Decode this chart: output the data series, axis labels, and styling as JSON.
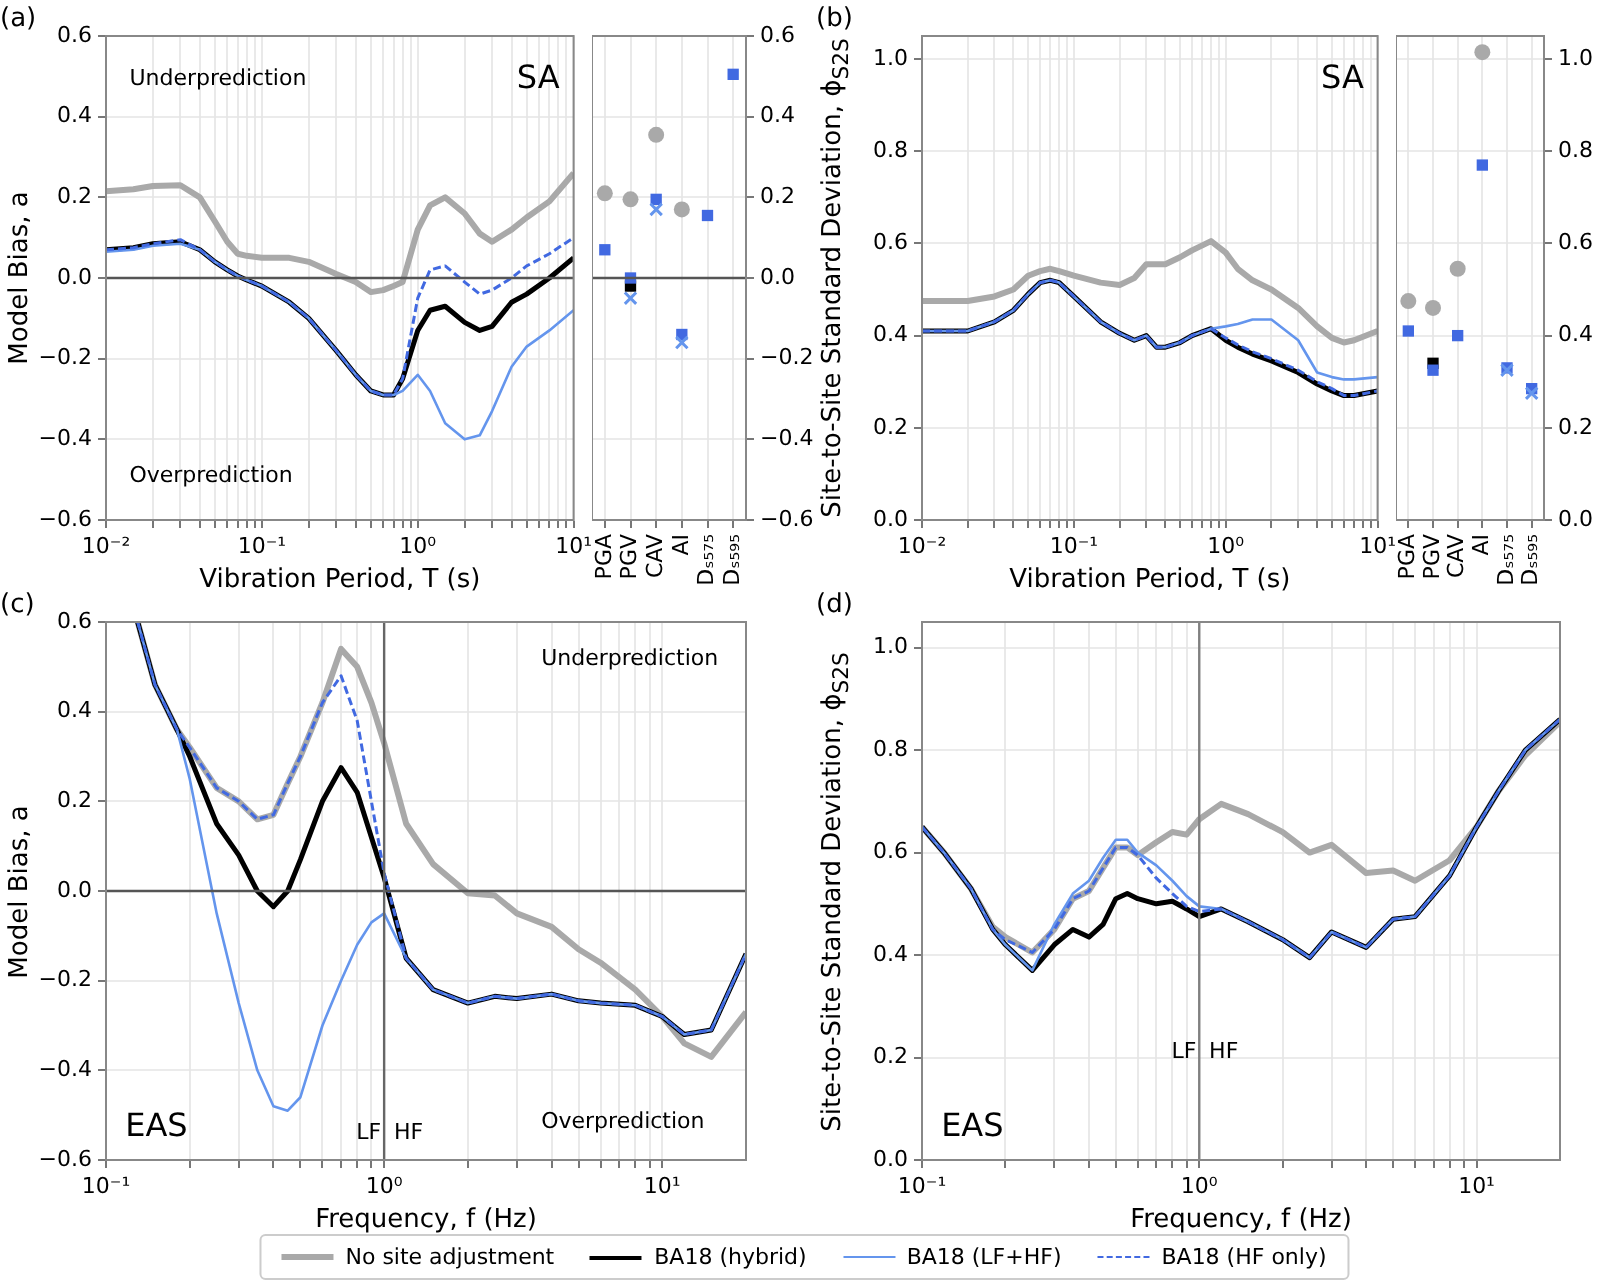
{
  "chart_data": [
    {
      "type": "line",
      "title": "(a)",
      "xlabel": "Vibration Period, T (s)",
      "ylabel": "Model Bias, a",
      "log": "x",
      "grid": true,
      "legend": "bottom",
      "annotations": [
        "Underprediction",
        "SA",
        "Overprediction"
      ],
      "xlim": [
        0.01,
        10
      ],
      "xticks": [
        {
          "value": 0.01,
          "label": "10⁻²"
        },
        {
          "value": 0.02,
          "label": null
        },
        {
          "value": 0.03,
          "label": null
        },
        {
          "value": 0.04,
          "label": null
        },
        {
          "value": 0.05,
          "label": null
        },
        {
          "value": 0.06,
          "label": null
        },
        {
          "value": 0.07,
          "label": null
        },
        {
          "value": 0.08,
          "label": null
        },
        {
          "value": 0.09,
          "label": null
        },
        {
          "value": 0.1,
          "label": "10⁻¹"
        },
        {
          "value": 0.2,
          "label": null
        },
        {
          "value": 0.3,
          "label": null
        },
        {
          "value": 0.4,
          "label": null
        },
        {
          "value": 0.5,
          "label": null
        },
        {
          "value": 0.6,
          "label": null
        },
        {
          "value": 0.7,
          "label": null
        },
        {
          "value": 0.8,
          "label": null
        },
        {
          "value": 0.9,
          "label": null
        },
        {
          "value": 1,
          "label": "10⁰"
        },
        {
          "value": 2,
          "label": null
        },
        {
          "value": 3,
          "label": null
        },
        {
          "value": 4,
          "label": null
        },
        {
          "value": 5,
          "label": null
        },
        {
          "value": 6,
          "label": null
        },
        {
          "value": 7,
          "label": null
        },
        {
          "value": 8,
          "label": null
        },
        {
          "value": 9,
          "label": null
        },
        {
          "value": 10,
          "label": "10¹"
        }
      ],
      "ylim": [
        -0.6,
        0.6
      ],
      "yticks": [
        {
          "value": -0.6,
          "label": "−0.6"
        },
        {
          "value": -0.4,
          "label": "−0.4"
        },
        {
          "value": -0.2,
          "label": "−0.2"
        },
        {
          "value": 0,
          "label": "0.0"
        },
        0.2,
        0.4,
        0.6
      ],
      "ref_lines": [
        {
          "axis": "y",
          "value": 0,
          "color": "#555555"
        }
      ],
      "x": [
        0.01,
        0.015,
        0.02,
        0.03,
        0.04,
        0.05,
        0.06,
        0.07,
        0.08,
        0.1,
        0.15,
        0.2,
        0.3,
        0.4,
        0.5,
        0.6,
        0.7,
        0.8,
        1.0,
        1.2,
        1.5,
        2,
        2.5,
        3,
        4,
        5,
        7,
        10
      ],
      "series": [
        {
          "name": "No site adjustment",
          "color": "#a9a9a9",
          "values": [
            0.215,
            0.22,
            0.228,
            0.23,
            0.2,
            0.14,
            0.09,
            0.06,
            0.055,
            0.05,
            0.05,
            0.04,
            0.01,
            -0.01,
            -0.035,
            -0.03,
            -0.02,
            -0.01,
            0.12,
            0.18,
            0.2,
            0.16,
            0.11,
            0.09,
            0.12,
            0.15,
            0.19,
            0.26
          ]
        },
        {
          "name": "BA18 (hybrid)",
          "color": "#000000",
          "values": [
            0.07,
            0.075,
            0.085,
            0.09,
            0.07,
            0.04,
            0.02,
            0.005,
            -0.005,
            -0.02,
            -0.06,
            -0.1,
            -0.18,
            -0.24,
            -0.28,
            -0.29,
            -0.29,
            -0.25,
            -0.13,
            -0.08,
            -0.07,
            -0.11,
            -0.13,
            -0.12,
            -0.06,
            -0.04,
            0.0,
            0.05
          ]
        },
        {
          "name": "BA18 (LF+HF)",
          "color": "#6495ed",
          "values": [
            0.065,
            0.07,
            0.08,
            0.085,
            0.07,
            0.04,
            0.02,
            0.005,
            -0.005,
            -0.02,
            -0.06,
            -0.1,
            -0.18,
            -0.24,
            -0.28,
            -0.29,
            -0.29,
            -0.28,
            -0.24,
            -0.28,
            -0.36,
            -0.4,
            -0.39,
            -0.33,
            -0.22,
            -0.17,
            -0.13,
            -0.08
          ]
        },
        {
          "name": "BA18 (HF only)",
          "color": "#4169e1",
          "line_style": "dashed",
          "values": [
            0.07,
            0.075,
            0.085,
            0.095,
            0.07,
            0.04,
            0.02,
            0.005,
            -0.005,
            -0.02,
            -0.06,
            -0.1,
            -0.18,
            -0.24,
            -0.28,
            -0.29,
            -0.29,
            -0.25,
            -0.05,
            0.02,
            0.03,
            -0.01,
            -0.04,
            -0.03,
            0.0,
            0.03,
            0.06,
            0.1
          ]
        }
      ]
    },
    {
      "type": "scatter",
      "categories": [
        "PGA",
        "PGV",
        "CAV",
        "AI",
        "Dₛ₅₇₅",
        "Dₛ₅₉₅"
      ],
      "grid": true,
      "y2lim": [
        -0.6,
        0.6
      ],
      "y2ticks": [
        {
          "value": -0.6,
          "label": "−0.6"
        },
        {
          "value": -0.4,
          "label": "−0.4"
        },
        {
          "value": -0.2,
          "label": "−0.2"
        },
        {
          "value": 0,
          "label": "0.0"
        },
        0.2,
        0.4,
        0.6
      ],
      "ref_lines": [
        {
          "axis": "y2",
          "value": 0,
          "color": "#555555"
        }
      ],
      "series": [
        {
          "color": "#a9a9a9",
          "marker": "circle",
          "axis": "y2",
          "values": [
            0.21,
            0.195,
            0.355,
            0.17,
            null,
            null
          ]
        },
        {
          "color": "#000000",
          "marker": "square",
          "axis": "y2",
          "values": [
            null,
            -0.02,
            null,
            null,
            null,
            null
          ]
        },
        {
          "color": "#4169e1",
          "marker": "square",
          "axis": "y2",
          "values": [
            0.07,
            0.0,
            0.195,
            -0.14,
            0.155,
            0.505
          ]
        },
        {
          "color": "#6495ed",
          "marker": "cross",
          "axis": "y2",
          "values": [
            null,
            -0.05,
            0.17,
            -0.16,
            null,
            null
          ]
        }
      ]
    },
    {
      "type": "line",
      "title": "(b)",
      "xlabel": "Vibration Period, T (s)",
      "ylabel": "Site-to-Site Standard Deviation, ϕ$_{S2S}$",
      "log": "x",
      "grid": true,
      "annotations": [
        "SA"
      ],
      "xlim": [
        0.01,
        10
      ],
      "xticks": [
        {
          "value": 0.01,
          "label": "10⁻²"
        },
        {
          "value": 0.02,
          "label": null
        },
        {
          "value": 0.03,
          "label": null
        },
        {
          "value": 0.04,
          "label": null
        },
        {
          "value": 0.05,
          "label": null
        },
        {
          "value": 0.06,
          "label": null
        },
        {
          "value": 0.07,
          "label": null
        },
        {
          "value": 0.08,
          "label": null
        },
        {
          "value": 0.09,
          "label": null
        },
        {
          "value": 0.1,
          "label": "10⁻¹"
        },
        {
          "value": 0.2,
          "label": null
        },
        {
          "value": 0.3,
          "label": null
        },
        {
          "value": 0.4,
          "label": null
        },
        {
          "value": 0.5,
          "label": null
        },
        {
          "value": 0.6,
          "label": null
        },
        {
          "value": 0.7,
          "label": null
        },
        {
          "value": 0.8,
          "label": null
        },
        {
          "value": 0.9,
          "label": null
        },
        {
          "value": 1,
          "label": "10⁰"
        },
        {
          "value": 2,
          "label": null
        },
        {
          "value": 3,
          "label": null
        },
        {
          "value": 4,
          "label": null
        },
        {
          "value": 5,
          "label": null
        },
        {
          "value": 6,
          "label": null
        },
        {
          "value": 7,
          "label": null
        },
        {
          "value": 8,
          "label": null
        },
        {
          "value": 9,
          "label": null
        },
        {
          "value": 10,
          "label": "10¹"
        }
      ],
      "ylim": [
        0,
        1.05
      ],
      "yticks": [
        {
          "value": 0,
          "label": "0.0"
        },
        0.2,
        0.4,
        0.6,
        0.8,
        {
          "value": 1,
          "label": "1.0"
        }
      ],
      "x": [
        0.01,
        0.015,
        0.02,
        0.03,
        0.04,
        0.05,
        0.06,
        0.07,
        0.08,
        0.1,
        0.15,
        0.2,
        0.25,
        0.3,
        0.35,
        0.4,
        0.5,
        0.6,
        0.8,
        1.0,
        1.2,
        1.5,
        2,
        3,
        4,
        5,
        6,
        7,
        10
      ],
      "series": [
        {
          "color": "#a9a9a9",
          "values": [
            0.475,
            0.475,
            0.475,
            0.485,
            0.5,
            0.53,
            0.54,
            0.545,
            0.54,
            0.53,
            0.515,
            0.51,
            0.525,
            0.555,
            0.555,
            0.555,
            0.57,
            0.585,
            0.605,
            0.58,
            0.545,
            0.52,
            0.5,
            0.46,
            0.42,
            0.395,
            0.385,
            0.39,
            0.41
          ]
        },
        {
          "color": "#000000",
          "values": [
            0.41,
            0.41,
            0.41,
            0.43,
            0.455,
            0.49,
            0.515,
            0.52,
            0.515,
            0.485,
            0.43,
            0.405,
            0.39,
            0.4,
            0.375,
            0.375,
            0.385,
            0.4,
            0.415,
            0.39,
            0.375,
            0.36,
            0.345,
            0.32,
            0.295,
            0.28,
            0.27,
            0.27,
            0.28
          ]
        },
        {
          "color": "#6495ed",
          "values": [
            0.41,
            0.41,
            0.41,
            0.43,
            0.455,
            0.49,
            0.515,
            0.52,
            0.515,
            0.485,
            0.43,
            0.405,
            0.39,
            0.4,
            0.375,
            0.375,
            0.385,
            0.4,
            0.415,
            0.42,
            0.425,
            0.435,
            0.435,
            0.39,
            0.32,
            0.31,
            0.305,
            0.305,
            0.31
          ]
        },
        {
          "color": "#4169e1",
          "line_style": "dashed",
          "values": [
            0.41,
            0.41,
            0.41,
            0.43,
            0.455,
            0.49,
            0.515,
            0.52,
            0.515,
            0.485,
            0.43,
            0.405,
            0.39,
            0.4,
            0.375,
            0.375,
            0.385,
            0.4,
            0.415,
            0.395,
            0.38,
            0.365,
            0.35,
            0.325,
            0.3,
            0.285,
            0.27,
            0.27,
            0.28
          ]
        }
      ]
    },
    {
      "type": "scatter",
      "categories": [
        "PGA",
        "PGV",
        "CAV",
        "AI",
        "Dₛ₅₇₅",
        "Dₛ₅₉₅"
      ],
      "grid": true,
      "y2lim": [
        0,
        1.05
      ],
      "y2ticks": [
        {
          "value": 0,
          "label": "0.0"
        },
        0.2,
        0.4,
        0.6,
        0.8,
        {
          "value": 1,
          "label": "1.0"
        }
      ],
      "series": [
        {
          "color": "#a9a9a9",
          "marker": "circle",
          "axis": "y2",
          "values": [
            0.475,
            0.46,
            0.545,
            1.015,
            null,
            null
          ]
        },
        {
          "color": "#000000",
          "marker": "square",
          "axis": "y2",
          "values": [
            null,
            0.34,
            null,
            null,
            null,
            null
          ]
        },
        {
          "color": "#4169e1",
          "marker": "square",
          "axis": "y2",
          "values": [
            0.41,
            0.325,
            0.4,
            0.77,
            0.33,
            0.285
          ]
        },
        {
          "color": "#6495ed",
          "marker": "cross",
          "axis": "y2",
          "values": [
            null,
            null,
            null,
            null,
            0.325,
            0.275
          ]
        }
      ]
    },
    {
      "type": "line",
      "title": "(c)",
      "xlabel": "Frequency, f (Hz)",
      "ylabel": "Model Bias, a",
      "log": "x",
      "grid": true,
      "annotations": [
        "Underprediction",
        "EAS",
        "LF",
        "HF",
        "Overprediction"
      ],
      "xlim": [
        0.1,
        20
      ],
      "xticks": [
        {
          "value": 0.1,
          "label": "10⁻¹"
        },
        {
          "value": 0.2,
          "label": null
        },
        {
          "value": 0.3,
          "label": null
        },
        {
          "value": 0.4,
          "label": null
        },
        {
          "value": 0.5,
          "label": null
        },
        {
          "value": 0.6,
          "label": null
        },
        {
          "value": 0.7,
          "label": null
        },
        {
          "value": 0.8,
          "label": null
        },
        {
          "value": 0.9,
          "label": null
        },
        {
          "value": 1,
          "label": "10⁰"
        },
        {
          "value": 2,
          "label": null
        },
        {
          "value": 3,
          "label": null
        },
        {
          "value": 4,
          "label": null
        },
        {
          "value": 5,
          "label": null
        },
        {
          "value": 6,
          "label": null
        },
        {
          "value": 7,
          "label": null
        },
        {
          "value": 8,
          "label": null
        },
        {
          "value": 9,
          "label": null
        },
        {
          "value": 10,
          "label": "10¹"
        }
      ],
      "ylim": [
        -0.6,
        0.6
      ],
      "yticks": [
        {
          "value": -0.6,
          "label": "−0.6"
        },
        {
          "value": -0.4,
          "label": "−0.4"
        },
        {
          "value": -0.2,
          "label": "−0.2"
        },
        {
          "value": 0,
          "label": "0.0"
        },
        0.2,
        0.4,
        0.6
      ],
      "ref_lines": [
        {
          "axis": "y",
          "value": 0,
          "color": "#555555"
        },
        {
          "axis": "x",
          "value": 1,
          "color": "#666666"
        }
      ],
      "x": [
        0.13,
        0.15,
        0.18,
        0.2,
        0.25,
        0.3,
        0.35,
        0.4,
        0.45,
        0.5,
        0.6,
        0.7,
        0.8,
        0.9,
        1.0,
        1.2,
        1.5,
        2,
        2.5,
        3,
        4,
        5,
        6,
        8,
        10,
        12,
        15,
        20
      ],
      "series": [
        {
          "color": "#a9a9a9",
          "values": [
            0.6,
            0.46,
            0.36,
            0.32,
            0.23,
            0.2,
            0.16,
            0.17,
            0.24,
            0.3,
            0.42,
            0.54,
            0.5,
            0.42,
            0.33,
            0.15,
            0.06,
            -0.005,
            -0.01,
            -0.05,
            -0.08,
            -0.13,
            -0.16,
            -0.22,
            -0.28,
            -0.34,
            -0.37,
            -0.27
          ]
        },
        {
          "color": "#000000",
          "values": [
            0.6,
            0.46,
            0.36,
            0.3,
            0.15,
            0.08,
            0.0,
            -0.035,
            0.0,
            0.07,
            0.2,
            0.275,
            0.22,
            0.12,
            0.03,
            -0.15,
            -0.22,
            -0.25,
            -0.235,
            -0.24,
            -0.23,
            -0.245,
            -0.25,
            -0.255,
            -0.28,
            -0.32,
            -0.31,
            -0.14
          ]
        },
        {
          "color": "#6495ed",
          "values": [
            0.6,
            0.46,
            0.36,
            0.25,
            -0.05,
            -0.25,
            -0.4,
            -0.48,
            -0.49,
            -0.46,
            -0.3,
            -0.2,
            -0.12,
            -0.07,
            -0.05,
            -0.15,
            -0.22,
            -0.25,
            -0.235,
            -0.24,
            -0.23,
            -0.245,
            -0.25,
            -0.255,
            -0.28,
            -0.32,
            -0.31,
            -0.14
          ]
        },
        {
          "color": "#4169e1",
          "line_style": "dashed",
          "values": [
            0.6,
            0.46,
            0.36,
            0.32,
            0.23,
            0.2,
            0.16,
            0.17,
            0.24,
            0.3,
            0.42,
            0.48,
            0.38,
            0.2,
            0.04,
            -0.15,
            -0.22,
            -0.25,
            -0.235,
            -0.24,
            -0.23,
            -0.245,
            -0.25,
            -0.255,
            -0.28,
            -0.32,
            -0.31,
            -0.14
          ]
        }
      ]
    },
    {
      "type": "line",
      "title": "(d)",
      "xlabel": "Frequency, f (Hz)",
      "ylabel": "Site-to-Site Standard Deviation, ϕ$_{S2S}$",
      "log": "x",
      "grid": true,
      "annotations": [
        "EAS",
        "LF",
        "HF"
      ],
      "xlim": [
        0.1,
        20
      ],
      "xticks": [
        {
          "value": 0.1,
          "label": "10⁻¹"
        },
        {
          "value": 0.2,
          "label": null
        },
        {
          "value": 0.3,
          "label": null
        },
        {
          "value": 0.4,
          "label": null
        },
        {
          "value": 0.5,
          "label": null
        },
        {
          "value": 0.6,
          "label": null
        },
        {
          "value": 0.7,
          "label": null
        },
        {
          "value": 0.8,
          "label": null
        },
        {
          "value": 0.9,
          "label": null
        },
        {
          "value": 1,
          "label": "10⁰"
        },
        {
          "value": 2,
          "label": null
        },
        {
          "value": 3,
          "label": null
        },
        {
          "value": 4,
          "label": null
        },
        {
          "value": 5,
          "label": null
        },
        {
          "value": 6,
          "label": null
        },
        {
          "value": 7,
          "label": null
        },
        {
          "value": 8,
          "label": null
        },
        {
          "value": 9,
          "label": null
        },
        {
          "value": 10,
          "label": "10¹"
        }
      ],
      "ylim": [
        0,
        1.05
      ],
      "yticks": [
        {
          "value": 0,
          "label": "0.0"
        },
        0.2,
        0.4,
        0.6,
        0.8,
        {
          "value": 1,
          "label": "1.0"
        }
      ],
      "ref_lines": [
        {
          "axis": "x",
          "value": 1,
          "color": "#808080"
        }
      ],
      "x": [
        0.1,
        0.12,
        0.15,
        0.18,
        0.2,
        0.25,
        0.3,
        0.35,
        0.4,
        0.45,
        0.5,
        0.55,
        0.6,
        0.7,
        0.8,
        0.9,
        1.0,
        1.2,
        1.5,
        2,
        2.5,
        3,
        4,
        5,
        6,
        8,
        10,
        12,
        15,
        20
      ],
      "series": [
        {
          "color": "#a9a9a9",
          "values": [
            0.65,
            0.6,
            0.53,
            0.455,
            0.435,
            0.405,
            0.45,
            0.51,
            0.525,
            0.57,
            0.61,
            0.61,
            0.595,
            0.62,
            0.64,
            0.635,
            0.665,
            0.695,
            0.675,
            0.64,
            0.6,
            0.615,
            0.56,
            0.565,
            0.545,
            0.585,
            0.65,
            0.72,
            0.79,
            0.855
          ]
        },
        {
          "color": "#000000",
          "values": [
            0.65,
            0.6,
            0.53,
            0.45,
            0.42,
            0.37,
            0.42,
            0.45,
            0.435,
            0.46,
            0.51,
            0.52,
            0.51,
            0.5,
            0.505,
            0.49,
            0.475,
            0.49,
            0.465,
            0.43,
            0.395,
            0.445,
            0.415,
            0.47,
            0.475,
            0.555,
            0.65,
            0.72,
            0.8,
            0.86
          ]
        },
        {
          "color": "#6495ed",
          "values": [
            0.65,
            0.6,
            0.53,
            0.45,
            0.42,
            0.37,
            0.46,
            0.52,
            0.545,
            0.59,
            0.625,
            0.625,
            0.6,
            0.575,
            0.545,
            0.515,
            0.495,
            0.49,
            0.465,
            0.43,
            0.395,
            0.445,
            0.415,
            0.47,
            0.475,
            0.555,
            0.65,
            0.72,
            0.8,
            0.86
          ]
        },
        {
          "color": "#4169e1",
          "line_style": "dashed",
          "values": [
            0.65,
            0.6,
            0.53,
            0.45,
            0.43,
            0.405,
            0.45,
            0.51,
            0.525,
            0.57,
            0.61,
            0.61,
            0.595,
            0.55,
            0.52,
            0.495,
            0.485,
            0.49,
            0.465,
            0.43,
            0.395,
            0.445,
            0.415,
            0.47,
            0.475,
            0.555,
            0.65,
            0.72,
            0.8,
            0.86
          ]
        }
      ]
    }
  ]
}
